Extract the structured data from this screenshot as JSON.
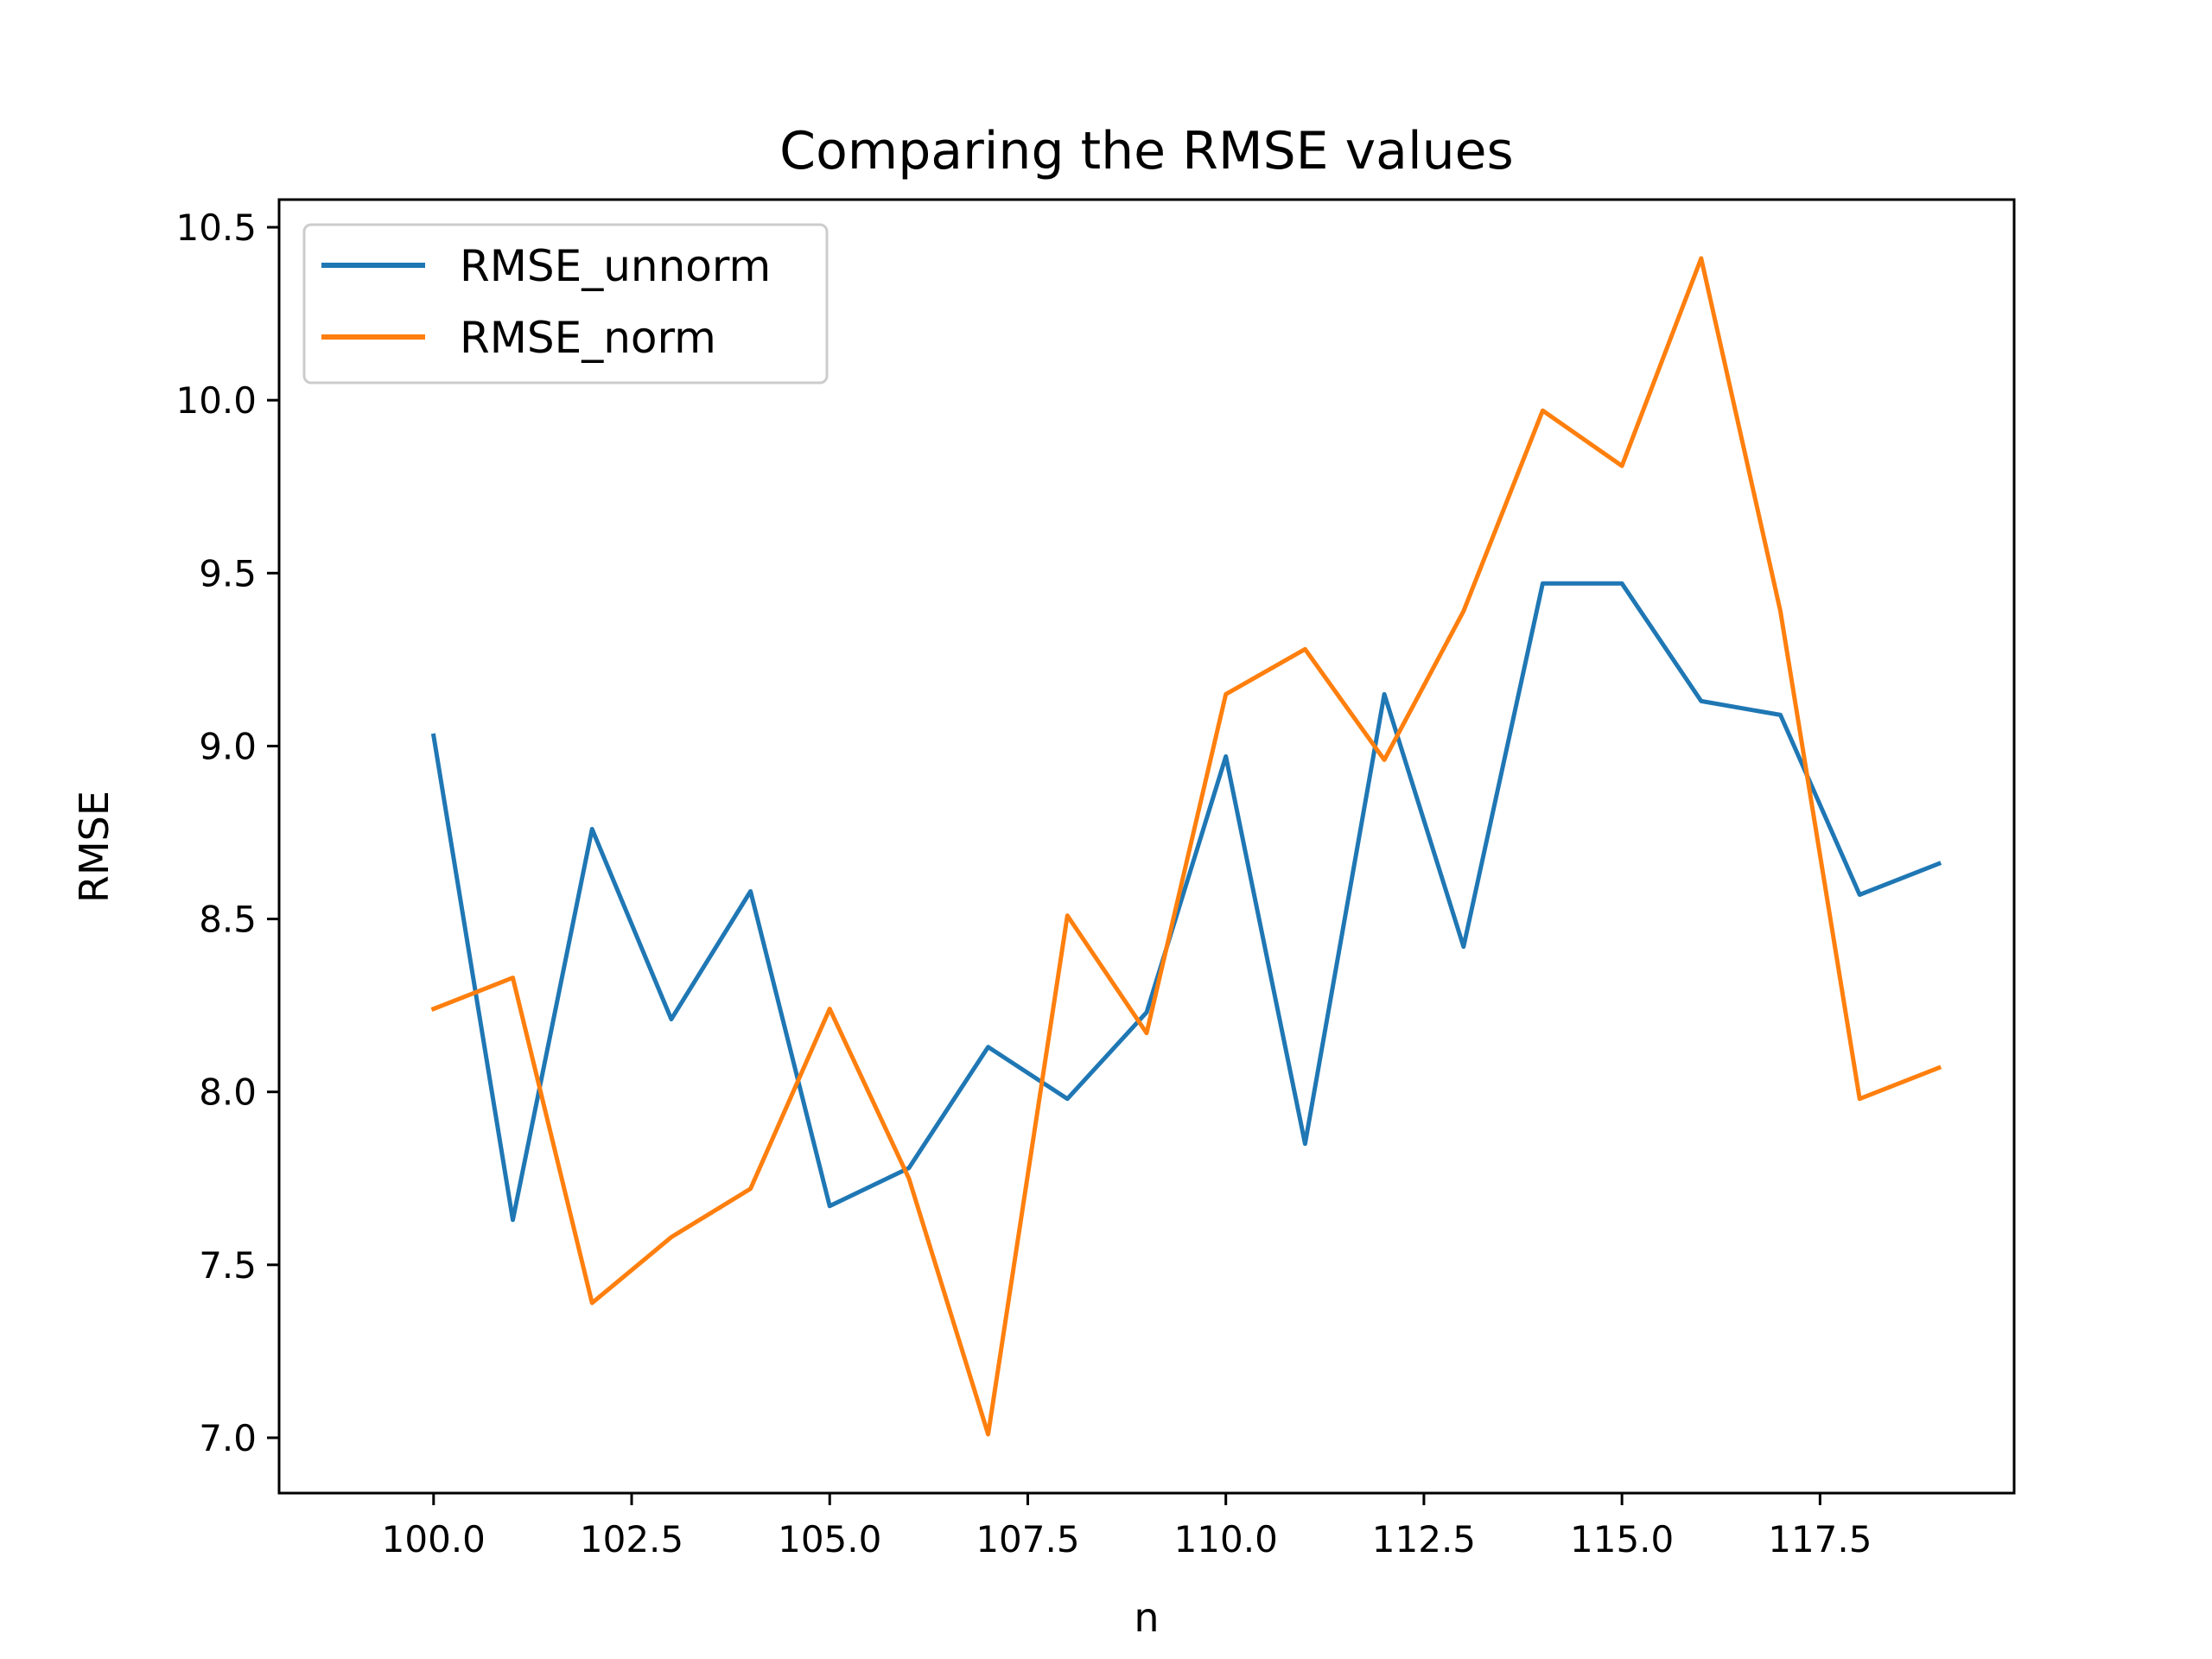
{
  "chart_data": {
    "type": "line",
    "title": "Comparing the RMSE values",
    "xlabel": "n",
    "ylabel": "RMSE",
    "xlim": [
      98.05,
      119.95
    ],
    "ylim": [
      6.84,
      10.58
    ],
    "x_ticks": [
      100.0,
      102.5,
      105.0,
      107.5,
      110.0,
      112.5,
      115.0,
      117.5
    ],
    "x_tick_labels": [
      "100.0",
      "102.5",
      "105.0",
      "107.5",
      "110.0",
      "112.5",
      "115.0",
      "117.5"
    ],
    "y_ticks": [
      7.0,
      7.5,
      8.0,
      8.5,
      9.0,
      9.5,
      10.0,
      10.5
    ],
    "y_tick_labels": [
      "7.0",
      "7.5",
      "8.0",
      "8.5",
      "9.0",
      "9.5",
      "10.0",
      "10.5"
    ],
    "grid": false,
    "legend_position": "top-left",
    "x": [
      100,
      101,
      102,
      103,
      104,
      105,
      106,
      107,
      108,
      109,
      110,
      111,
      112,
      113,
      114,
      115,
      116,
      117,
      118,
      119
    ],
    "series": [
      {
        "name": "RMSE_unnorm",
        "color": "#1f77b4",
        "values": [
          9.03,
          7.63,
          8.76,
          8.21,
          8.58,
          7.67,
          7.78,
          8.13,
          7.98,
          8.23,
          8.97,
          7.85,
          9.15,
          8.42,
          9.47,
          9.47,
          9.13,
          9.09,
          8.57,
          8.66
        ]
      },
      {
        "name": "RMSE_norm",
        "color": "#ff7f0e",
        "values": [
          8.24,
          8.33,
          7.39,
          7.58,
          7.72,
          8.24,
          7.75,
          7.01,
          8.51,
          8.17,
          9.15,
          9.28,
          8.96,
          9.39,
          9.97,
          9.81,
          10.41,
          9.39,
          7.98,
          8.07
        ]
      }
    ]
  }
}
